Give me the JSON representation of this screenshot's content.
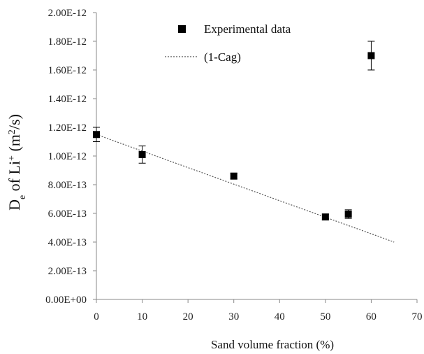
{
  "chart_data": {
    "type": "scatter",
    "xlabel": "Sand volume fraction (%)",
    "ylabel": {
      "base": "D",
      "sub": "e",
      "mid": " of Li",
      "sup": "+",
      "unit_open": " (m",
      "unit_sup": "2",
      "unit_close": "/s)"
    },
    "xlim": [
      0,
      70
    ],
    "ylim": [
      0,
      2e-12
    ],
    "x_ticks": [
      "0",
      "10",
      "20",
      "30",
      "40",
      "50",
      "60",
      "70"
    ],
    "y_ticks": [
      "0.00E+00",
      "2.00E-13",
      "4.00E-13",
      "6.00E-13",
      "8.00E-13",
      "1.00E-12",
      "1.20E-12",
      "1.40E-12",
      "1.60E-12",
      "1.80E-12",
      "2.00E-12"
    ],
    "legend_position": "top-center",
    "grid": false,
    "series": [
      {
        "name": "Experimental data",
        "marker": "square",
        "color": "#000000",
        "points": [
          {
            "x": 0,
            "y": 1.15e-12,
            "err": 5e-14
          },
          {
            "x": 10,
            "y": 1.01e-12,
            "err": 6e-14
          },
          {
            "x": 30,
            "y": 8.6e-13,
            "err": 2e-14
          },
          {
            "x": 50,
            "y": 5.75e-13,
            "err": 2e-14
          },
          {
            "x": 55,
            "y": 5.95e-13,
            "err": 3e-14
          },
          {
            "x": 60,
            "y": 1.7e-12,
            "err": 1e-13
          }
        ]
      },
      {
        "name": "(1-Cag)",
        "style": "dotted-line",
        "color": "#555555",
        "points": [
          {
            "x": 0,
            "y": 1.15e-12
          },
          {
            "x": 65,
            "y": 4e-13
          }
        ]
      }
    ]
  }
}
